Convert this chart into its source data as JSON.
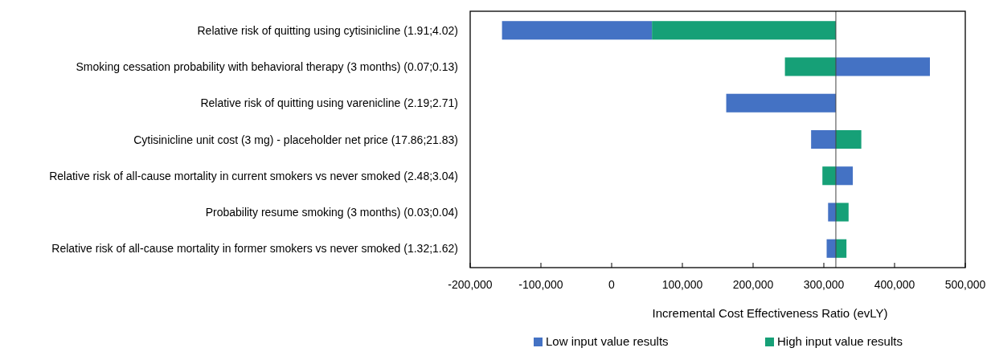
{
  "chart_data": {
    "type": "bar",
    "orientation": "horizontal",
    "categories": [
      "Relative risk of quitting using cytisinicline (1.91;4.02)",
      "Smoking cessation probability with behavioral therapy (3 months) (0.07;0.13)",
      "Relative risk of quitting using varenicline (2.19;2.71)",
      "Cytisinicline unit cost (3 mg) - placeholder net price (17.86;21.83)",
      "Relative risk of all-cause mortality in current smokers vs never smoked (2.48;3.04)",
      "Probability resume smoking (3 months) (0.03;0.04)",
      "Relative risk of all-cause mortality in former smokers vs never smoked (1.32;1.62)"
    ],
    "series": [
      {
        "name": "Low input value results",
        "color": "#4472c4",
        "base": [
          -155000,
          317000,
          162000,
          282000,
          317000,
          306000,
          304000
        ],
        "values": [
          212000,
          133000,
          155000,
          35000,
          24000,
          11000,
          13000
        ]
      },
      {
        "name": "High input value results",
        "color": "#16a077",
        "base": [
          57000,
          245000,
          null,
          317000,
          298000,
          317000,
          317000
        ],
        "values": [
          260000,
          72000,
          null,
          36000,
          19000,
          18000,
          15000
        ]
      }
    ],
    "xlabel": "Incremental Cost Effectiveness Ratio (evLY)",
    "xlim": [
      -200000,
      500000
    ],
    "xticks": [
      {
        "value": -200000,
        "label": "-200,000"
      },
      {
        "value": -100000,
        "label": "-100,000"
      },
      0,
      {
        "value": 100000,
        "label": "100,000"
      },
      {
        "value": 200000,
        "label": "200,000"
      },
      {
        "value": 300000,
        "label": "300,000"
      },
      {
        "value": 400000,
        "label": "400,000"
      },
      {
        "value": 500000,
        "label": "500,000"
      }
    ],
    "ref_lines": [
      {
        "axis": "x",
        "value": 317000,
        "color": "#404040"
      }
    ],
    "grid": false,
    "legend": "bottom"
  }
}
